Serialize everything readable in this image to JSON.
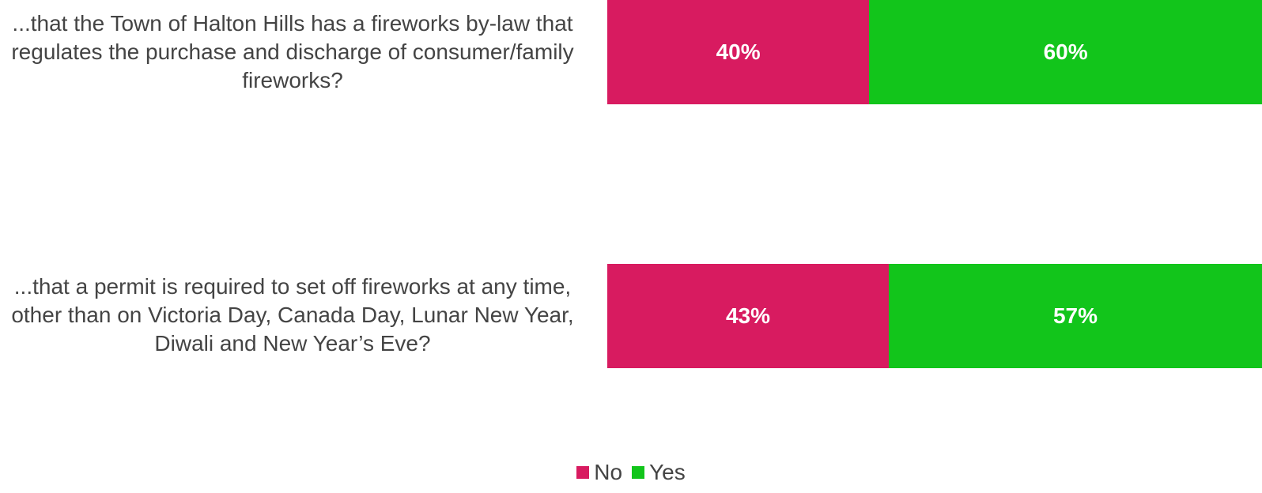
{
  "chart_data": {
    "type": "bar",
    "orientation": "horizontal",
    "stacked": true,
    "percent_scale": true,
    "categories": [
      "...that the Town of Halton Hills has a fireworks by-law that regulates the purchase and discharge of consumer/family fireworks?",
      "...that a permit is required to set off fireworks at any time, other than on Victoria Day, Canada Day, Lunar New Year, Diwali and New Year’s Eve?"
    ],
    "series": [
      {
        "name": "No",
        "values": [
          40,
          43
        ],
        "labels": [
          "40%",
          "43%"
        ],
        "color": "#D81B60"
      },
      {
        "name": "Yes",
        "values": [
          60,
          57
        ],
        "labels": [
          "60%",
          "57%"
        ],
        "color": "#12C51B"
      }
    ],
    "xlim": [
      0,
      100
    ],
    "grid": false,
    "legend_position": "bottom-center"
  }
}
